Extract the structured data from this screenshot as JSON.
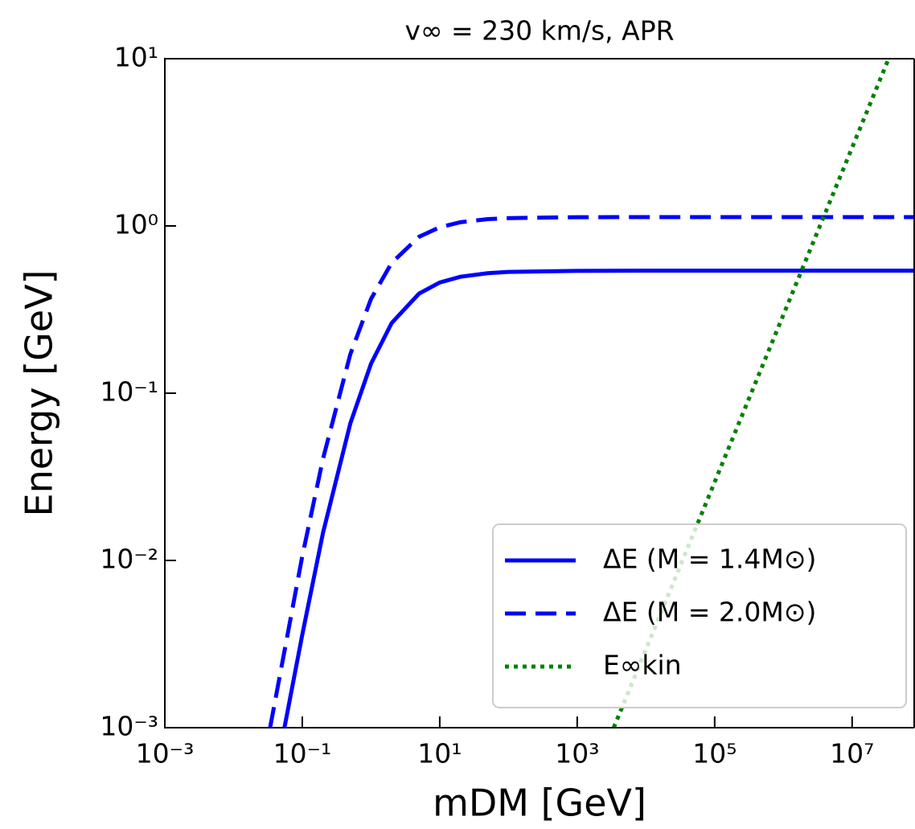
{
  "chart_data": {
    "type": "line",
    "title": "v∞ = 230 km/s, APR",
    "x_label": "mDM [GeV]",
    "y_label": "Energy [GeV]",
    "xscale": "log",
    "yscale": "log",
    "xlim": [
      0.001,
      80000000
    ],
    "ylim": [
      0.001,
      10
    ],
    "xticks": [
      {
        "value": 0.001,
        "label": "10⁻³"
      },
      {
        "value": 0.1,
        "label": "10⁻¹"
      },
      {
        "value": 10,
        "label": "10¹"
      },
      {
        "value": 1000,
        "label": "10³"
      },
      {
        "value": 100000,
        "label": "10⁵"
      },
      {
        "value": 10000000,
        "label": "10⁷"
      }
    ],
    "yticks": [
      {
        "value": 0.001,
        "label": "10⁻³"
      },
      {
        "value": 0.01,
        "label": "10⁻²"
      },
      {
        "value": 0.1,
        "label": "10⁻¹"
      },
      {
        "value": 1,
        "label": "10⁰"
      },
      {
        "value": 10,
        "label": "10¹"
      }
    ],
    "legend": "lower right",
    "series": [
      {
        "name": "ΔE (M = 1.4M⊙)",
        "color": "#0000ff",
        "dash": "solid",
        "x": [
          0.055,
          0.1,
          0.2,
          0.5,
          1,
          2,
          5,
          10,
          20,
          50,
          100,
          1000,
          10000,
          1000000,
          80000000
        ],
        "values": [
          0.001,
          0.0036,
          0.0146,
          0.066,
          0.15,
          0.263,
          0.394,
          0.459,
          0.497,
          0.522,
          0.531,
          0.539,
          0.54,
          0.54,
          0.54
        ]
      },
      {
        "name": "ΔE (M = 2.0M⊙)",
        "color": "#0000ff",
        "dash": "dashed",
        "x": [
          0.034,
          0.1,
          0.2,
          0.5,
          1,
          2,
          5,
          10,
          20,
          50,
          100,
          1000,
          10000,
          1000000,
          80000000
        ],
        "values": [
          0.001,
          0.0106,
          0.0405,
          0.171,
          0.366,
          0.602,
          0.861,
          0.982,
          1.053,
          1.098,
          1.114,
          1.128,
          1.13,
          1.13,
          1.13
        ]
      },
      {
        "name": "E∞kin",
        "color": "#008000",
        "dash": "dotted",
        "x": [
          3400,
          34000000
        ],
        "values": [
          0.001,
          10
        ]
      }
    ]
  }
}
